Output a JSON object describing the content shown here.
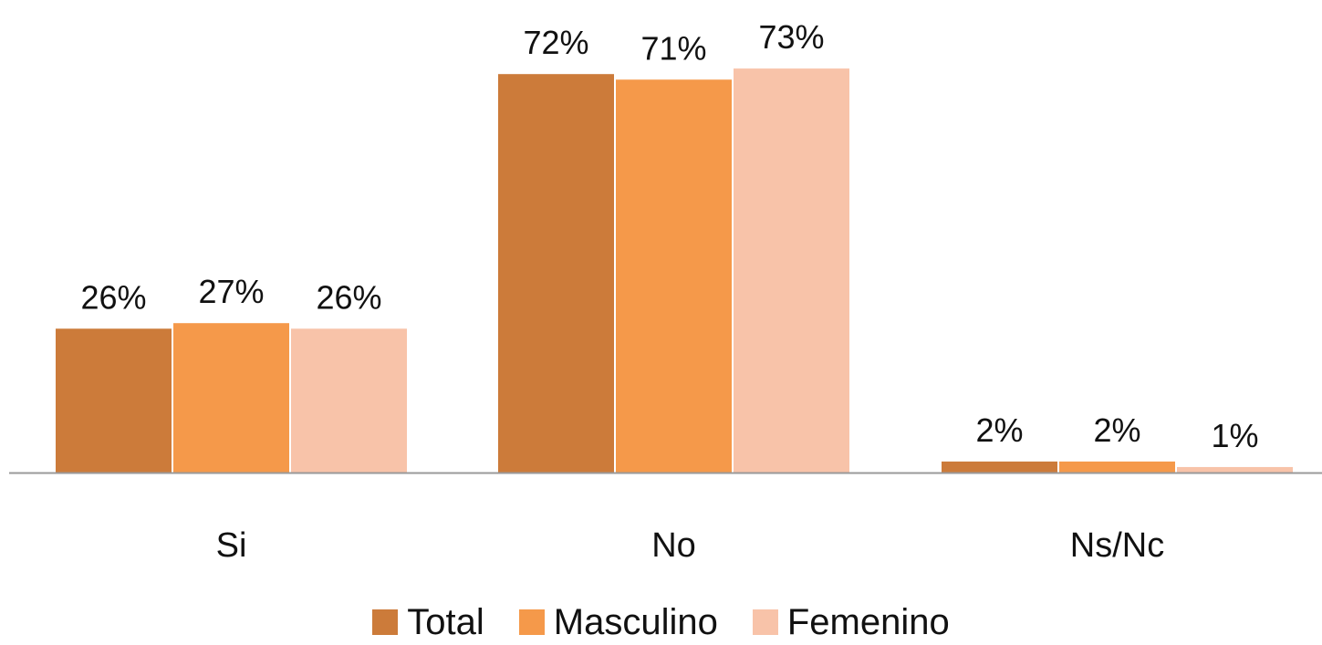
{
  "chart_data": {
    "type": "bar",
    "categories": [
      "Si",
      "No",
      "Ns/Nc"
    ],
    "series": [
      {
        "name": "Total",
        "values": [
          26,
          72,
          2
        ],
        "labels": [
          "26%",
          "72%",
          "2%"
        ],
        "color": "#cc7b3a"
      },
      {
        "name": "Masculino",
        "values": [
          27,
          71,
          2
        ],
        "labels": [
          "27%",
          "71%",
          "2%"
        ],
        "color": "#f5994a"
      },
      {
        "name": "Femenino",
        "values": [
          26,
          73,
          1
        ],
        "labels": [
          "26%",
          "73%",
          "1%"
        ],
        "color": "#f8c3a9"
      }
    ],
    "ylim": [
      0,
      75
    ],
    "grid": false,
    "legend_position": "bottom",
    "axis_color": "#9a9a9a"
  }
}
